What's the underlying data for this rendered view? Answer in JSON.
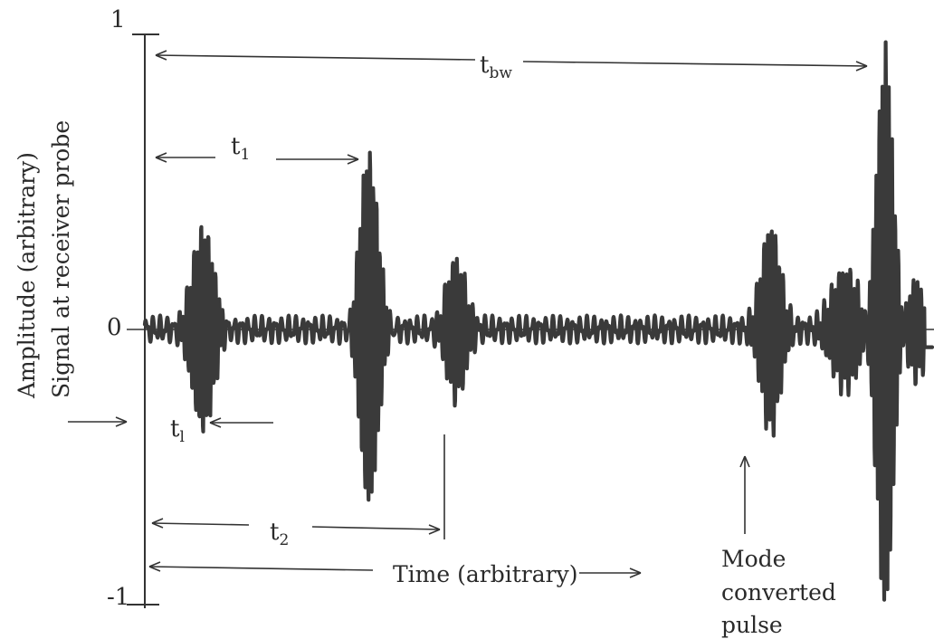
{
  "chart_data": {
    "type": "line",
    "title": "",
    "ylabel_line1": "Amplitude (arbitrary)",
    "ylabel_line2": "Signal at receiver probe",
    "xlabel": "Time (arbitrary)",
    "ylim": [
      -1,
      1
    ],
    "xlim": [
      0,
      100
    ],
    "yticks": [
      {
        "value": 1,
        "label": "1"
      },
      {
        "value": 0,
        "label": "0"
      },
      {
        "value": -1,
        "label": "-1"
      }
    ],
    "grid": false,
    "legend": "none",
    "annotations": [
      {
        "id": "tbw",
        "base": "t",
        "sub": "bw",
        "from": 1,
        "to": 94
      },
      {
        "id": "t1",
        "base": "t",
        "sub": "1",
        "from": 1,
        "to": 28
      },
      {
        "id": "tl",
        "base": "t",
        "sub": "l"
      },
      {
        "id": "t2",
        "base": "t",
        "sub": "2",
        "from": 1,
        "to": 39
      },
      {
        "id": "mode",
        "lines": [
          "Mode",
          "converted",
          "pulse"
        ],
        "at_x": 80
      }
    ],
    "series": [
      {
        "packets": [
          {
            "center": 7.5,
            "amp": 0.33,
            "width": 1.4,
            "freq": 1.05
          },
          {
            "center": 28.5,
            "amp": 0.6,
            "width": 1.1,
            "freq": 1.15
          },
          {
            "center": 39.5,
            "amp": 0.25,
            "width": 1.3,
            "freq": 0.95
          },
          {
            "center": 79.5,
            "amp": 0.33,
            "width": 1.2,
            "freq": 1.0
          },
          {
            "center": 94.0,
            "amp": 0.95,
            "width": 1.0,
            "freq": 1.2
          },
          {
            "center": 89.0,
            "amp": 0.2,
            "width": 1.8,
            "freq": 1.0
          },
          {
            "center": 98.0,
            "amp": 0.18,
            "width": 1.3,
            "freq": 1.0
          }
        ],
        "noise_amp": 0.03,
        "trailing_value": -0.06
      }
    ]
  }
}
